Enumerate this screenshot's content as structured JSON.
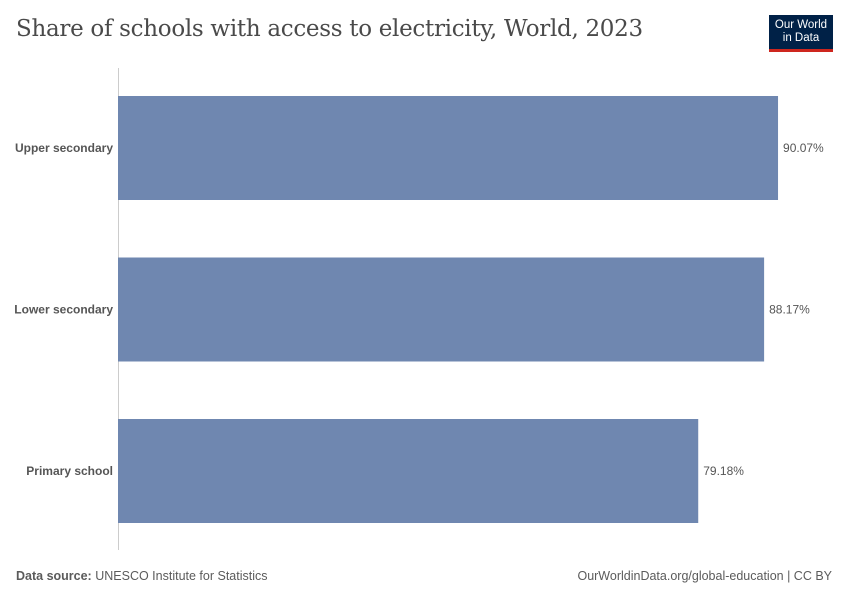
{
  "title": "Share of schools with access to electricity, World, 2023",
  "logo": {
    "line1": "Our World",
    "line2": "in Data"
  },
  "footer": {
    "source_label": "Data source:",
    "source": "UNESCO Institute for Statistics",
    "url": "OurWorldinData.org/global-education | CC BY"
  },
  "chart_data": {
    "type": "bar",
    "orientation": "horizontal",
    "title": "Share of schools with access to electricity, World, 2023",
    "categories": [
      "Upper secondary",
      "Lower secondary",
      "Primary school"
    ],
    "values": [
      90.07,
      88.17,
      79.18
    ],
    "labels": [
      "90.07%",
      "88.17%",
      "79.18%"
    ],
    "unit": "%",
    "color": "#6f87b0",
    "grid": false
  }
}
